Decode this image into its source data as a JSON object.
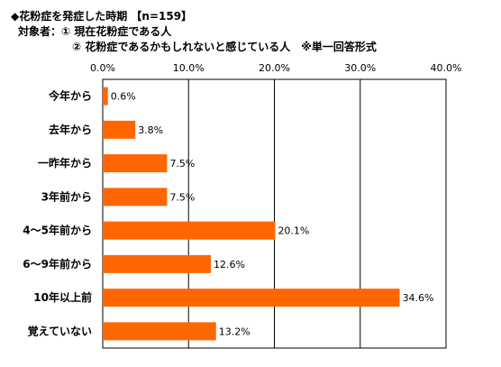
{
  "header": {
    "title": "◆花粉症を発症した時期 【n=159】",
    "target_line1": "対象者：① 現在花粉症である人",
    "target_line2": "② 花粉症であるかもしれないと感じている人　※単一回答形式"
  },
  "chart_data": {
    "type": "bar",
    "orientation": "horizontal",
    "categories": [
      "今年から",
      "去年から",
      "一昨年から",
      "3年前から",
      "4～5年前から",
      "6～9年前から",
      "10年以上前",
      "覚えていない"
    ],
    "values": [
      0.6,
      3.8,
      7.5,
      7.5,
      20.1,
      12.6,
      34.6,
      13.2
    ],
    "value_labels": [
      "0.6%",
      "3.8%",
      "7.5%",
      "7.5%",
      "20.1%",
      "12.6%",
      "34.6%",
      "13.2%"
    ],
    "xlim": [
      0,
      40
    ],
    "ticks": [
      0,
      10,
      20,
      30,
      40
    ],
    "tick_labels": [
      "0.0%",
      "10.0%",
      "20.0%",
      "30.0%",
      "40.0%"
    ],
    "axis_position": "top",
    "grid": true,
    "bar_color": "#FF6600"
  }
}
